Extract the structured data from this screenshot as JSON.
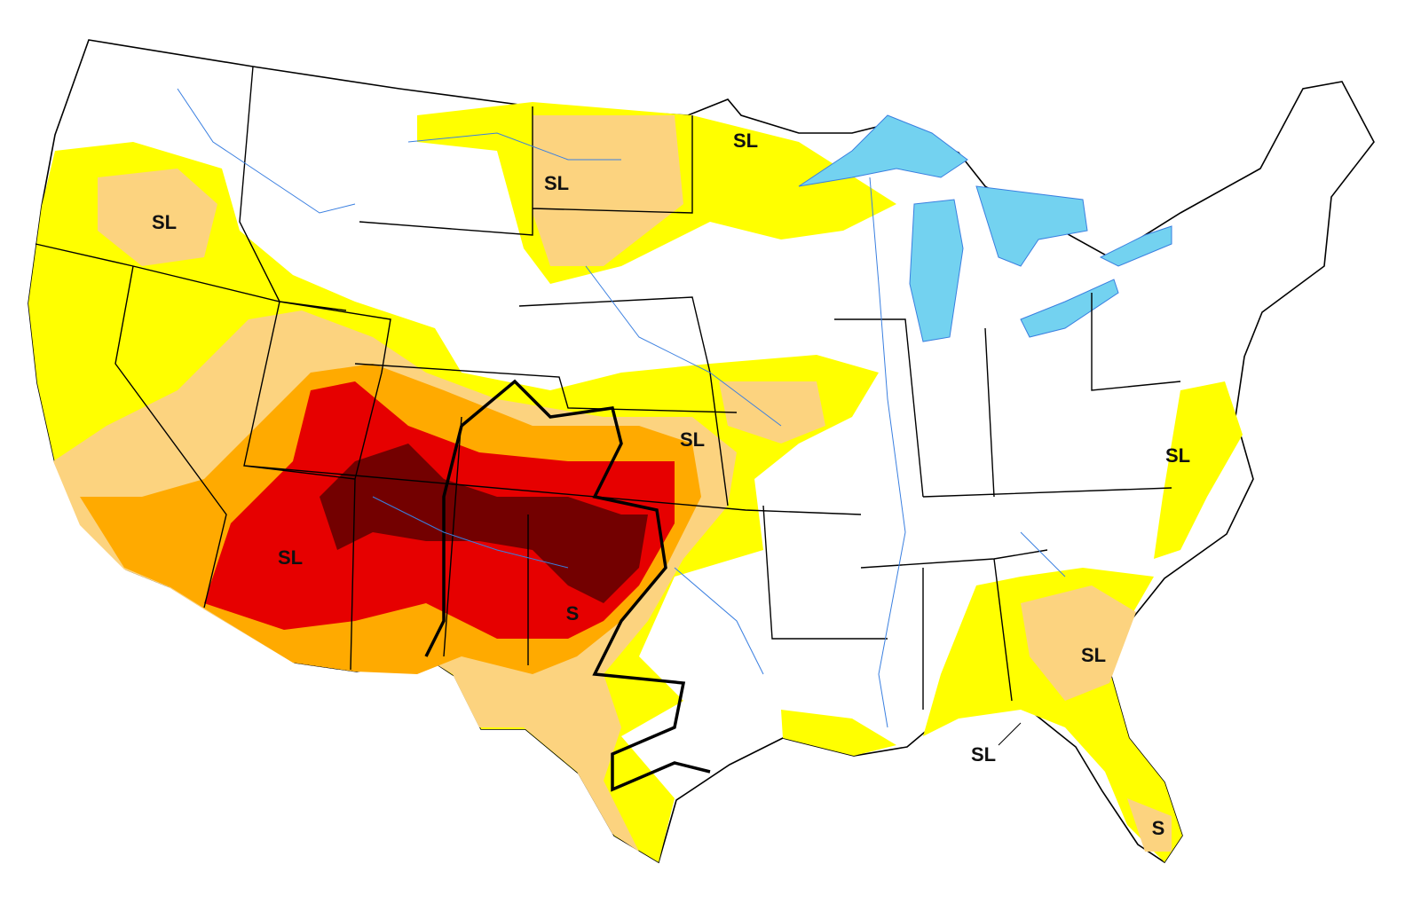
{
  "labels": [
    "SL",
    "SL",
    "SL",
    "SL",
    "SL",
    "SL",
    "SL",
    "SL",
    "S",
    "S"
  ]
}
